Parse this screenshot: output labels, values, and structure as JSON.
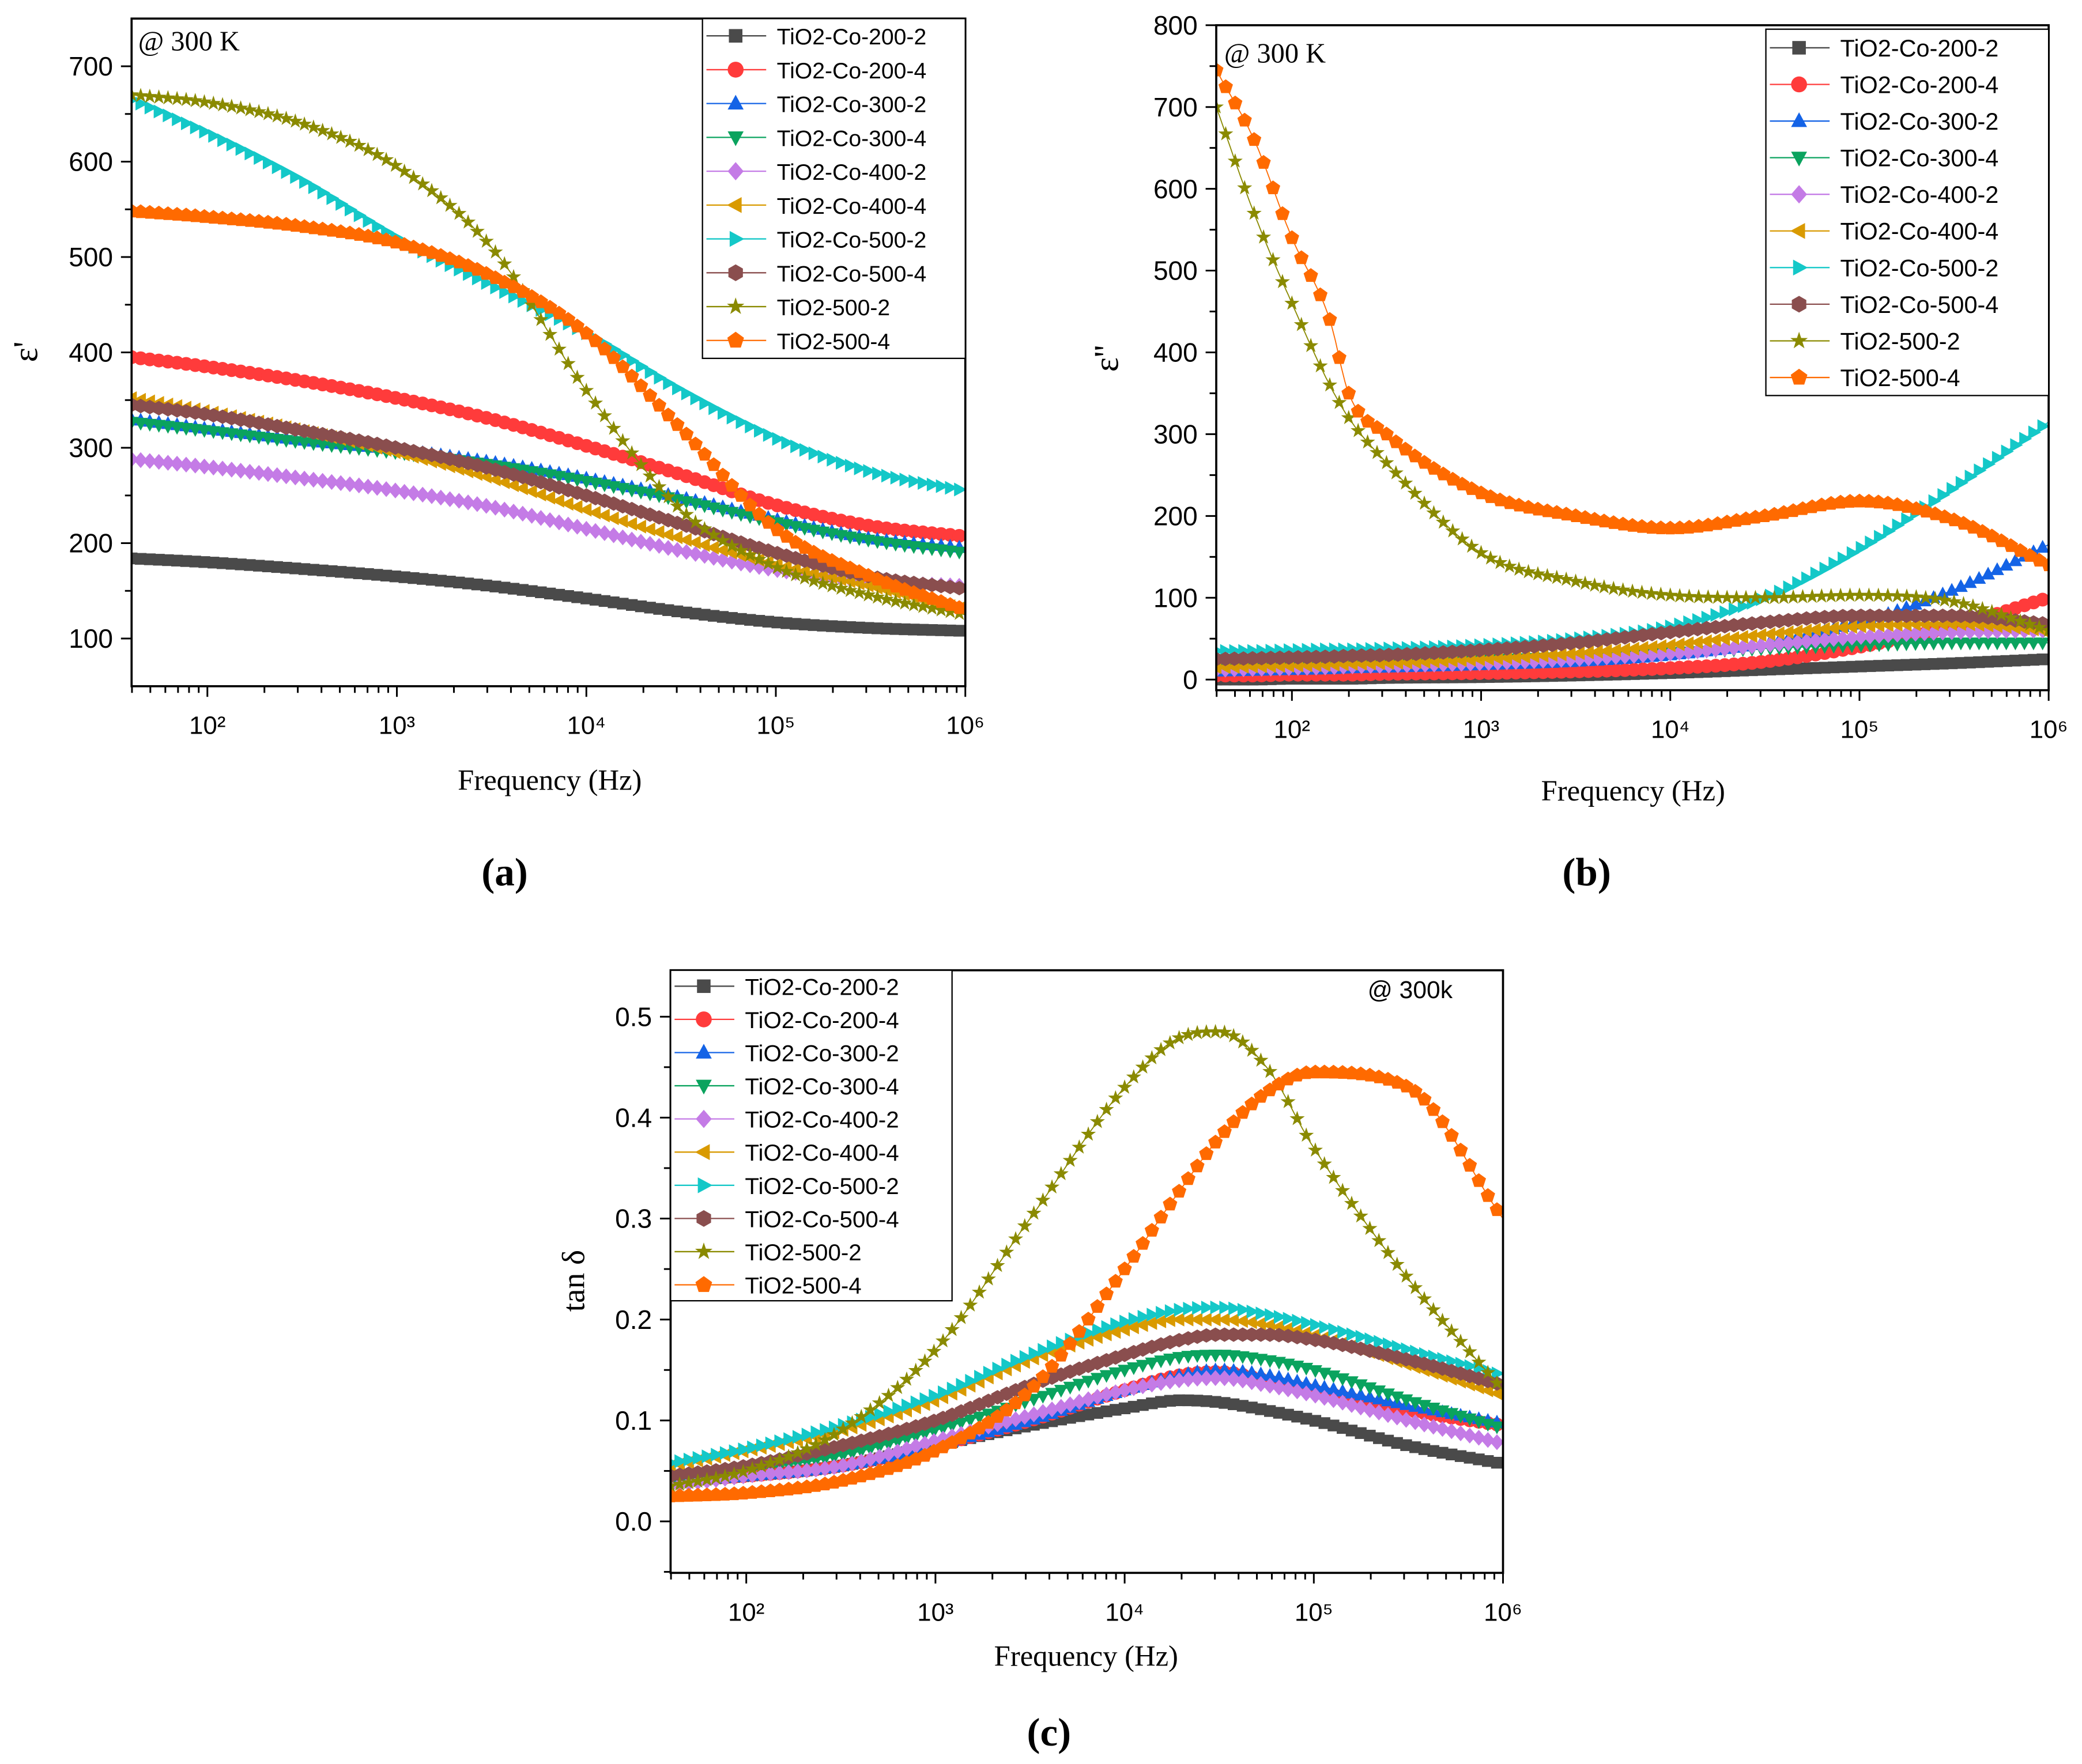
{
  "legend_labels": [
    "TiO2-Co-200-2",
    "TiO2-Co-200-4",
    "TiO2-Co-300-2",
    "TiO2-Co-300-4",
    "TiO2-Co-400-2",
    "TiO2-Co-400-4",
    "TiO2-Co-500-2",
    "TiO2-Co-500-4",
    "TiO2-500-2",
    "TiO2-500-4"
  ],
  "series_colors": [
    "#4a4a4a",
    "#ff3b3b",
    "#1463e6",
    "#0aa35e",
    "#c47be6",
    "#d99a00",
    "#14c8c8",
    "#8a4e4e",
    "#8a8a00",
    "#ff6a00"
  ],
  "series_markers": [
    "square",
    "circle",
    "triangle-up",
    "triangle-down",
    "diamond",
    "triangle-left",
    "triangle-right",
    "hexagon",
    "star",
    "pentagon"
  ],
  "chart_data": [
    {
      "type": "scatter",
      "panel_label": "(a)",
      "annotation": "@ 300 K",
      "xlabel": "Frequency (Hz)",
      "ylabel": "ε'",
      "x_scale": "log10",
      "xlim_log10": [
        1.6,
        6
      ],
      "ylim": [
        50,
        750
      ],
      "x_ticks_log10": [
        2,
        3,
        4,
        5,
        6
      ],
      "x_tick_labels": [
        "10²",
        "10³",
        "10⁴",
        "10⁵",
        "10⁶"
      ],
      "y_ticks": [
        100,
        200,
        300,
        400,
        500,
        600,
        700
      ],
      "y_tick_labels": [
        "100",
        "200",
        "300",
        "400",
        "500",
        "600",
        "700"
      ],
      "legend_position": "top-right",
      "x_log10": [
        1.6,
        2,
        2.5,
        3,
        3.5,
        4,
        4.5,
        5,
        5.5,
        6
      ],
      "series": [
        {
          "name": "TiO2-Co-200-2",
          "values": [
            184,
            180,
            173,
            165,
            155,
            142,
            128,
            117,
            111,
            108
          ]
        },
        {
          "name": "TiO2-Co-200-4",
          "values": [
            395,
            385,
            370,
            352,
            330,
            302,
            272,
            240,
            218,
            207
          ]
        },
        {
          "name": "TiO2-Co-300-2",
          "values": [
            330,
            320,
            308,
            298,
            285,
            268,
            248,
            225,
            205,
            195
          ]
        },
        {
          "name": "TiO2-Co-300-4",
          "values": [
            327,
            318,
            306,
            295,
            282,
            265,
            245,
            222,
            203,
            190
          ]
        },
        {
          "name": "TiO2-Co-400-2",
          "values": [
            288,
            280,
            268,
            255,
            238,
            215,
            192,
            172,
            160,
            155
          ]
        },
        {
          "name": "TiO2-Co-400-4",
          "values": [
            352,
            338,
            318,
            295,
            268,
            235,
            205,
            178,
            155,
            130
          ]
        },
        {
          "name": "TiO2-Co-500-2",
          "values": [
            665,
            630,
            580,
            520,
            470,
            420,
            360,
            310,
            275,
            255
          ]
        },
        {
          "name": "TiO2-Co-500-4",
          "values": [
            345,
            335,
            318,
            300,
            278,
            250,
            220,
            190,
            165,
            152
          ]
        },
        {
          "name": "TiO2-500-2",
          "values": [
            670,
            662,
            640,
            595,
            510,
            360,
            235,
            175,
            145,
            125
          ]
        },
        {
          "name": "TiO2-500-4",
          "values": [
            548,
            542,
            532,
            515,
            480,
            420,
            320,
            215,
            165,
            130
          ]
        }
      ]
    },
    {
      "type": "scatter",
      "panel_label": "(b)",
      "annotation": "@ 300 K",
      "xlabel": "Frequency (Hz)",
      "ylabel": "ε''",
      "x_scale": "log10",
      "xlim_log10": [
        1.6,
        6
      ],
      "ylim": [
        -13,
        800
      ],
      "x_ticks_log10": [
        2,
        3,
        4,
        5,
        6
      ],
      "x_tick_labels": [
        "10²",
        "10³",
        "10⁴",
        "10⁵",
        "10⁶"
      ],
      "y_ticks": [
        0,
        100,
        200,
        300,
        400,
        500,
        600,
        700,
        800
      ],
      "y_tick_labels": [
        "0",
        "100",
        "200",
        "300",
        "400",
        "500",
        "600",
        "700",
        "800"
      ],
      "legend_position": "top-right",
      "x_log10": [
        1.6,
        1.8,
        2,
        2.2,
        2.3,
        2.5,
        3,
        3.5,
        4,
        4.5,
        5,
        5.5,
        6
      ],
      "series": [
        {
          "name": "TiO2-Co-200-2",
          "values": [
            0,
            0,
            1,
            1,
            1,
            2,
            3,
            5,
            8,
            12,
            16,
            20,
            25
          ]
        },
        {
          "name": "TiO2-Co-200-4",
          "values": [
            5,
            5,
            6,
            6,
            6,
            7,
            8,
            10,
            14,
            22,
            40,
            65,
            100
          ]
        },
        {
          "name": "TiO2-Co-300-2",
          "values": [
            10,
            11,
            12,
            13,
            14,
            15,
            18,
            22,
            30,
            45,
            70,
            110,
            165
          ]
        },
        {
          "name": "TiO2-Co-300-4",
          "values": [
            15,
            16,
            17,
            18,
            19,
            20,
            24,
            28,
            33,
            38,
            42,
            45,
            45
          ]
        },
        {
          "name": "TiO2-Co-400-2",
          "values": [
            12,
            13,
            14,
            15,
            16,
            17,
            20,
            25,
            32,
            42,
            52,
            58,
            60
          ]
        },
        {
          "name": "TiO2-Co-400-4",
          "values": [
            15,
            16,
            17,
            18,
            19,
            20,
            25,
            32,
            42,
            55,
            65,
            68,
            60
          ]
        },
        {
          "name": "TiO2-Co-500-2",
          "values": [
            35,
            35,
            36,
            37,
            37,
            38,
            42,
            50,
            65,
            100,
            160,
            235,
            315
          ]
        },
        {
          "name": "TiO2-Co-500-4",
          "values": [
            25,
            26,
            27,
            28,
            29,
            30,
            36,
            45,
            58,
            70,
            78,
            78,
            68
          ]
        },
        {
          "name": "TiO2-500-2",
          "values": [
            700,
            570,
            460,
            360,
            320,
            265,
            155,
            120,
            103,
            100,
            103,
            95,
            60
          ]
        },
        {
          "name": "TiO2-500-4",
          "values": [
            745,
            660,
            540,
            440,
            350,
            300,
            228,
            200,
            185,
            200,
            218,
            195,
            140
          ]
        }
      ]
    },
    {
      "type": "scatter",
      "panel_label": "(c)",
      "annotation": "@ 300k",
      "xlabel": "Frequency (Hz)",
      "ylabel": "tan δ",
      "x_scale": "log10",
      "xlim_log10": [
        1.6,
        6
      ],
      "ylim": [
        -0.051,
        0.546
      ],
      "x_ticks_log10": [
        2,
        3,
        4,
        5,
        6
      ],
      "x_tick_labels": [
        "10²",
        "10³",
        "10⁴",
        "10⁵",
        "10⁶"
      ],
      "y_ticks": [
        0,
        0.1,
        0.2,
        0.3,
        0.4,
        0.5
      ],
      "y_tick_labels": [
        "0.0",
        "0.1",
        "0.2",
        "0.3",
        "0.4",
        "0.5"
      ],
      "legend_position": "top-left",
      "x_log10": [
        1.6,
        2,
        2.5,
        3,
        3.5,
        4,
        4.3,
        4.5,
        4.75,
        5,
        5.5,
        6
      ],
      "series": [
        {
          "name": "TiO2-Co-200-2",
          "values": [
            0.04,
            0.045,
            0.055,
            0.075,
            0.095,
            0.112,
            0.12,
            0.118,
            0.11,
            0.1,
            0.075,
            0.057
          ]
        },
        {
          "name": "TiO2-Co-200-4",
          "values": [
            0.04,
            0.045,
            0.055,
            0.075,
            0.1,
            0.13,
            0.145,
            0.148,
            0.14,
            0.13,
            0.11,
            0.095
          ]
        },
        {
          "name": "TiO2-Co-300-2",
          "values": [
            0.04,
            0.045,
            0.055,
            0.075,
            0.1,
            0.13,
            0.145,
            0.15,
            0.145,
            0.135,
            0.115,
            0.097
          ]
        },
        {
          "name": "TiO2-Co-300-4",
          "values": [
            0.04,
            0.05,
            0.065,
            0.09,
            0.12,
            0.15,
            0.163,
            0.165,
            0.16,
            0.15,
            0.12,
            0.092
          ]
        },
        {
          "name": "TiO2-Co-400-2",
          "values": [
            0.035,
            0.045,
            0.055,
            0.08,
            0.105,
            0.13,
            0.14,
            0.142,
            0.135,
            0.125,
            0.1,
            0.077
          ]
        },
        {
          "name": "TiO2-Co-400-4",
          "values": [
            0.055,
            0.07,
            0.09,
            0.12,
            0.16,
            0.19,
            0.2,
            0.2,
            0.195,
            0.185,
            0.155,
            0.125
          ]
        },
        {
          "name": "TiO2-Co-500-2",
          "values": [
            0.058,
            0.072,
            0.095,
            0.125,
            0.165,
            0.198,
            0.21,
            0.212,
            0.205,
            0.195,
            0.17,
            0.145
          ]
        },
        {
          "name": "TiO2-Co-500-4",
          "values": [
            0.045,
            0.055,
            0.075,
            0.1,
            0.135,
            0.165,
            0.18,
            0.185,
            0.185,
            0.18,
            0.16,
            0.135
          ]
        },
        {
          "name": "TiO2-500-2",
          "values": [
            0.035,
            0.05,
            0.09,
            0.17,
            0.3,
            0.43,
            0.48,
            0.485,
            0.45,
            0.37,
            0.24,
            0.13
          ]
        },
        {
          "name": "TiO2-500-4",
          "values": [
            0.025,
            0.028,
            0.04,
            0.07,
            0.13,
            0.25,
            0.33,
            0.38,
            0.425,
            0.445,
            0.43,
            0.3
          ]
        }
      ]
    }
  ]
}
